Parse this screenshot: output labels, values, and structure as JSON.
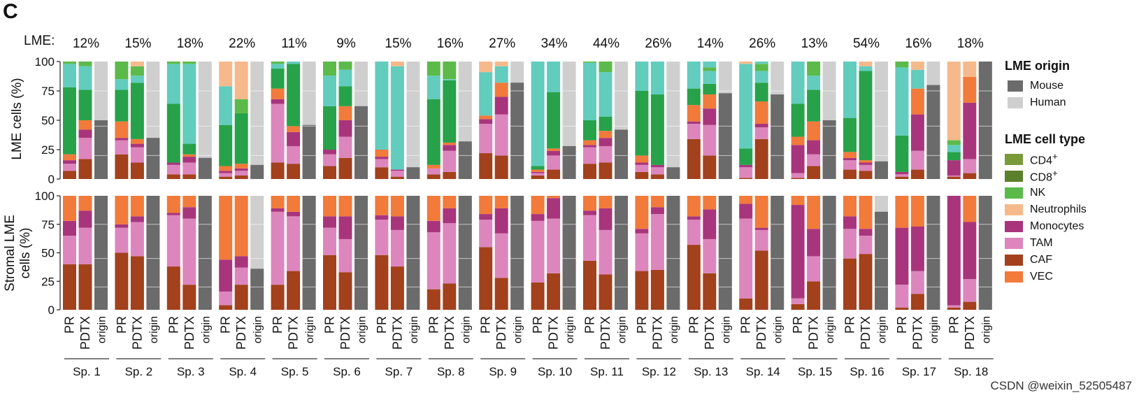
{
  "panel_label": "C",
  "lme_prefix": "LME:",
  "watermark": "CSDN @weixin_52505487",
  "legend": {
    "origin_title": "LME origin",
    "origin_items": [
      {
        "key": "mouse",
        "label": "Mouse",
        "color": "#6b6b6b"
      },
      {
        "key": "human",
        "label": "Human",
        "color": "#cfcfcf"
      }
    ],
    "celltype_title": "LME cell type",
    "celltype_items": [
      {
        "key": "cd4",
        "label": "CD4",
        "sup": "+",
        "color": "#7a9a3a"
      },
      {
        "key": "cd8",
        "label": "CD8",
        "sup": "+",
        "color": "#5c7f2b"
      },
      {
        "key": "nk",
        "label": "NK",
        "color": "#5cba4b"
      },
      {
        "key": "neutrophils",
        "label": "Neutrophils",
        "color": "#f6b98c"
      },
      {
        "key": "monocytes",
        "label": "Monocytes",
        "color": "#a8357c"
      },
      {
        "key": "tam",
        "label": "TAM",
        "color": "#dd86bd"
      },
      {
        "key": "caf",
        "label": "CAF",
        "color": "#a2411c"
      },
      {
        "key": "vec",
        "label": "VEC",
        "color": "#f27a3a"
      }
    ]
  },
  "chart_data": {
    "type": "stacked-bar",
    "title": "",
    "top_panel": {
      "ylabel": "LME cells (%)",
      "ylim": [
        0,
        100
      ],
      "ticks": [
        0,
        25,
        50,
        75,
        100
      ]
    },
    "bottom_panel": {
      "ylabel_line1": "Stromal LME",
      "ylabel_line2": "cells (%)",
      "ylim": [
        0,
        100
      ],
      "ticks": [
        0,
        25,
        50,
        75,
        100
      ]
    },
    "bar_labels": [
      "PR",
      "PDTX",
      "origin"
    ],
    "stack_order_bottom_to_top": [
      "caf",
      "tam",
      "monocytes",
      "vec",
      "neutrophils",
      "nk",
      "cd8",
      "cd4",
      "teal"
    ],
    "extra_colors": {
      "teal": "#62ccbd",
      "dark_green": "#27a24a"
    },
    "specimens": [
      {
        "name": "Sp. 1",
        "lme": "12%",
        "top": {
          "pr": {
            "caf": 7,
            "tam": 6,
            "monocytes": 3,
            "vec": 5,
            "green": 57,
            "teal": 20,
            "nk": 2
          },
          "pdtx": {
            "caf": 17,
            "tam": 18,
            "monocytes": 7,
            "vec": 8,
            "green": 26,
            "teal": 20,
            "nk": 4
          },
          "origin_mouse": 50
        },
        "bottom": {
          "pr": {
            "caf": 40,
            "tam": 25,
            "monocytes": 13,
            "vec": 22
          },
          "pdtx": {
            "caf": 40,
            "tam": 32,
            "monocytes": 15,
            "vec": 13
          },
          "origin_mouse": 100
        }
      },
      {
        "name": "Sp. 2",
        "lme": "15%",
        "top": {
          "pr": {
            "caf": 21,
            "tam": 12,
            "monocytes": 2,
            "vec": 14,
            "green": 27,
            "teal": 9,
            "nk": 15
          },
          "pdtx": {
            "caf": 14,
            "tam": 13,
            "monocytes": 3,
            "vec": 4,
            "green": 48,
            "teal": 6,
            "nk": 8,
            "neutrophils": 4
          },
          "origin_mouse": 35
        },
        "bottom": {
          "pr": {
            "caf": 50,
            "tam": 22,
            "monocytes": 3,
            "vec": 25
          },
          "pdtx": {
            "caf": 47,
            "tam": 30,
            "monocytes": 5,
            "vec": 18
          },
          "origin_mouse": 100
        }
      },
      {
        "name": "Sp. 3",
        "lme": "18%",
        "top": {
          "pr": {
            "caf": 4,
            "tam": 8,
            "monocytes": 2,
            "green": 50,
            "teal": 34,
            "nk": 2
          },
          "pdtx": {
            "caf": 4,
            "tam": 10,
            "monocytes": 5,
            "vec": 2,
            "green": 9,
            "teal": 68,
            "nk": 2
          },
          "origin_mouse": 18
        },
        "bottom": {
          "pr": {
            "caf": 38,
            "tam": 45,
            "monocytes": 2,
            "vec": 15
          },
          "pdtx": {
            "caf": 22,
            "tam": 58,
            "monocytes": 10,
            "vec": 10
          },
          "origin_mouse": 100
        }
      },
      {
        "name": "Sp. 4",
        "lme": "22%",
        "top": {
          "pr": {
            "caf": 2,
            "tam": 3,
            "monocytes": 2,
            "vec": 4,
            "green": 35,
            "teal": 33,
            "neutrophils": 21
          },
          "pdtx": {
            "caf": 3,
            "tam": 4,
            "monocytes": 2,
            "vec": 4,
            "green": 43,
            "nk": 12,
            "neutrophils": 32
          },
          "origin_mouse": 12
        },
        "bottom": {
          "pr": {
            "caf": 4,
            "tam": 12,
            "monocytes": 28,
            "vec": 56
          },
          "pdtx": {
            "caf": 22,
            "tam": 15,
            "monocytes": 10,
            "vec": 53
          },
          "origin_mouse": 36
        }
      },
      {
        "name": "Sp. 5",
        "lme": "11%",
        "top": {
          "pr": {
            "caf": 14,
            "tam": 50,
            "monocytes": 4,
            "vec": 9,
            "green": 17,
            "teal": 4,
            "nk": 2
          },
          "pdtx": {
            "caf": 13,
            "tam": 15,
            "monocytes": 12,
            "vec": 5,
            "green": 53,
            "teal": 2
          },
          "origin_mouse": 46
        },
        "bottom": {
          "pr": {
            "caf": 22,
            "tam": 64,
            "monocytes": 3,
            "vec": 11
          },
          "pdtx": {
            "caf": 34,
            "tam": 48,
            "monocytes": 4,
            "vec": 14
          },
          "origin_mouse": 100
        }
      },
      {
        "name": "Sp. 6",
        "lme": "9%",
        "top": {
          "pr": {
            "caf": 11,
            "tam": 10,
            "monocytes": 4,
            "green": 37,
            "teal": 26,
            "nk": 12
          },
          "pdtx": {
            "caf": 18,
            "tam": 18,
            "monocytes": 14,
            "vec": 12,
            "green": 17,
            "teal": 14,
            "nk": 7
          },
          "origin_mouse": 62
        },
        "bottom": {
          "pr": {
            "caf": 48,
            "tam": 24,
            "monocytes": 10,
            "vec": 18
          },
          "pdtx": {
            "caf": 33,
            "tam": 29,
            "monocytes": 20,
            "vec": 18
          },
          "origin_mouse": 100
        }
      },
      {
        "name": "Sp. 7",
        "lme": "15%",
        "top": {
          "pr": {
            "caf": 10,
            "tam": 7,
            "monocytes": 2,
            "vec": 6,
            "teal": 75
          },
          "pdtx": {
            "caf": 2,
            "tam": 5,
            "monocytes": 1,
            "teal": 88,
            "neutrophils": 4
          },
          "origin_mouse": 10
        },
        "bottom": {
          "pr": {
            "caf": 48,
            "tam": 31,
            "monocytes": 4,
            "vec": 17
          },
          "pdtx": {
            "caf": 38,
            "tam": 32,
            "monocytes": 12,
            "vec": 18
          },
          "origin_mouse": 100
        }
      },
      {
        "name": "Sp. 8",
        "lme": "16%",
        "top": {
          "pr": {
            "caf": 4,
            "tam": 5,
            "vec": 3,
            "green": 56,
            "teal": 20,
            "nk": 12
          },
          "pdtx": {
            "caf": 6,
            "tam": 18,
            "monocytes": 5,
            "vec": 2,
            "green": 53,
            "teal": 1,
            "nk": 15
          },
          "origin_mouse": 32
        },
        "bottom": {
          "pr": {
            "caf": 18,
            "tam": 50,
            "monocytes": 10,
            "vec": 22
          },
          "pdtx": {
            "caf": 23,
            "tam": 53,
            "monocytes": 13,
            "vec": 11
          },
          "origin_mouse": 100
        }
      },
      {
        "name": "Sp. 9",
        "lme": "27%",
        "top": {
          "pr": {
            "caf": 22,
            "tam": 25,
            "monocytes": 4,
            "vec": 3,
            "teal": 37,
            "neutrophils": 9
          },
          "pdtx": {
            "caf": 20,
            "tam": 35,
            "monocytes": 15,
            "vec": 12,
            "teal": 14,
            "neutrophils": 4
          },
          "origin_mouse": 82
        },
        "bottom": {
          "pr": {
            "caf": 55,
            "tam": 24,
            "monocytes": 5,
            "vec": 16
          },
          "pdtx": {
            "caf": 28,
            "tam": 39,
            "monocytes": 22,
            "vec": 11
          },
          "origin_mouse": 100
        }
      },
      {
        "name": "Sp. 10",
        "lme": "34%",
        "top": {
          "pr": {
            "caf": 3,
            "tam": 2,
            "monocytes": 1,
            "vec": 2,
            "green": 3,
            "teal": 89
          },
          "pdtx": {
            "caf": 8,
            "tam": 12,
            "monocytes": 4,
            "vec": 2,
            "green": 48,
            "teal": 26
          },
          "origin_mouse": 28
        },
        "bottom": {
          "pr": {
            "caf": 24,
            "tam": 54,
            "monocytes": 6,
            "vec": 16
          },
          "pdtx": {
            "caf": 32,
            "tam": 48,
            "monocytes": 18,
            "vec": 2
          },
          "origin_mouse": 100
        }
      },
      {
        "name": "Sp. 11",
        "lme": "44%",
        "top": {
          "pr": {
            "caf": 13,
            "tam": 14,
            "monocytes": 2,
            "vec": 4,
            "green": 17,
            "teal": 49,
            "nk": 1
          },
          "pdtx": {
            "caf": 14,
            "tam": 14,
            "monocytes": 7,
            "vec": 6,
            "green": 12,
            "teal": 38,
            "nk": 9
          },
          "origin_mouse": 42
        },
        "bottom": {
          "pr": {
            "caf": 43,
            "tam": 40,
            "monocytes": 4,
            "vec": 13
          },
          "pdtx": {
            "caf": 31,
            "tam": 39,
            "monocytes": 19,
            "vec": 11
          },
          "origin_mouse": 100
        }
      },
      {
        "name": "Sp. 12",
        "lme": "26%",
        "top": {
          "pr": {
            "caf": 6,
            "tam": 6,
            "monocytes": 2,
            "vec": 6,
            "green": 55,
            "teal": 25
          },
          "pdtx": {
            "caf": 4,
            "tam": 6,
            "monocytes": 2,
            "green": 60,
            "teal": 28
          },
          "origin_mouse": 10
        },
        "bottom": {
          "pr": {
            "caf": 34,
            "tam": 33,
            "monocytes": 4,
            "vec": 29
          },
          "pdtx": {
            "caf": 35,
            "tam": 49,
            "monocytes": 6,
            "vec": 10
          },
          "origin_mouse": 100
        }
      },
      {
        "name": "Sp. 13",
        "lme": "14%",
        "top": {
          "pr": {
            "caf": 34,
            "tam": 13,
            "monocytes": 2,
            "vec": 14,
            "green": 14,
            "teal": 23
          },
          "pdtx": {
            "caf": 20,
            "tam": 26,
            "monocytes": 14,
            "vec": 12,
            "green": 9,
            "teal": 11,
            "nk": 3
          },
          "origin_mouse": 73
        },
        "bottom": {
          "pr": {
            "caf": 57,
            "tam": 22,
            "monocytes": 3,
            "vec": 18
          },
          "pdtx": {
            "caf": 32,
            "tam": 30,
            "monocytes": 26,
            "vec": 12
          },
          "origin_mouse": 100
        }
      },
      {
        "name": "Sp. 14",
        "lme": "26%",
        "top": {
          "pr": {
            "caf": 1,
            "tam": 9,
            "monocytes": 2,
            "green": 14,
            "teal": 72,
            "neutrophils": 2
          },
          "pdtx": {
            "caf": 34,
            "tam": 10,
            "monocytes": 3,
            "vec": 19,
            "green": 16,
            "teal": 10,
            "nk": 6
          },
          "origin_mouse": 72
        },
        "bottom": {
          "pr": {
            "caf": 10,
            "tam": 70,
            "monocytes": 13,
            "vec": 7
          },
          "pdtx": {
            "caf": 52,
            "tam": 18,
            "monocytes": 2,
            "vec": 28
          },
          "origin_mouse": 100
        }
      },
      {
        "name": "Sp. 15",
        "lme": "13%",
        "top": {
          "pr": {
            "caf": 1,
            "tam": 4,
            "monocytes": 24,
            "vec": 7,
            "green": 28,
            "teal": 36
          },
          "pdtx": {
            "caf": 11,
            "tam": 10,
            "monocytes": 12,
            "vec": 16,
            "green": 27,
            "teal": 12,
            "nk": 12
          },
          "origin_mouse": 50
        },
        "bottom": {
          "pr": {
            "caf": 5,
            "tam": 5,
            "monocytes": 82,
            "vec": 8
          },
          "pdtx": {
            "caf": 25,
            "tam": 22,
            "monocytes": 24,
            "vec": 29
          },
          "origin_mouse": 100
        }
      },
      {
        "name": "Sp. 16",
        "lme": "54%",
        "top": {
          "pr": {
            "caf": 8,
            "tam": 8,
            "monocytes": 2,
            "vec": 5,
            "green": 29,
            "teal": 48
          },
          "pdtx": {
            "caf": 7,
            "tam": 5,
            "monocytes": 2,
            "vec": 2,
            "green": 76,
            "teal": 4,
            "neutrophils": 4
          },
          "origin_mouse": 15
        },
        "bottom": {
          "pr": {
            "caf": 45,
            "tam": 26,
            "monocytes": 11,
            "vec": 18
          },
          "pdtx": {
            "caf": 49,
            "tam": 16,
            "monocytes": 6,
            "vec": 29
          },
          "origin_mouse": 86
        },
        "note": "origin top bar mostly human"
      },
      {
        "name": "Sp. 17",
        "lme": "16%",
        "top": {
          "pr": {
            "caf": 2,
            "tam": 2,
            "monocytes": 2,
            "green": 31,
            "teal": 58,
            "nk": 5
          },
          "pdtx": {
            "caf": 8,
            "tam": 16,
            "monocytes": 31,
            "vec": 22,
            "teal": 16,
            "neutrophils": 7
          },
          "origin_mouse": 80
        },
        "bottom": {
          "pr": {
            "caf": 2,
            "tam": 20,
            "monocytes": 50,
            "vec": 28
          },
          "pdtx": {
            "caf": 14,
            "tam": 20,
            "monocytes": 39,
            "vec": 27
          },
          "origin_mouse": 100
        }
      },
      {
        "name": "Sp. 18",
        "lme": "18%",
        "top": {
          "pr": {
            "caf": 2,
            "tam": 1,
            "monocytes": 13,
            "green": 7,
            "teal": 6,
            "nk": 4,
            "neutrophils": 67
          },
          "pdtx": {
            "caf": 5,
            "tam": 12,
            "monocytes": 48,
            "vec": 22,
            "neutrophils": 13
          },
          "origin_mouse": 100
        },
        "bottom": {
          "pr": {
            "caf": 2,
            "tam": 2,
            "monocytes": 96
          },
          "pdtx": {
            "caf": 7,
            "tam": 20,
            "monocytes": 50,
            "vec": 23
          },
          "origin_mouse": 100
        }
      }
    ]
  }
}
